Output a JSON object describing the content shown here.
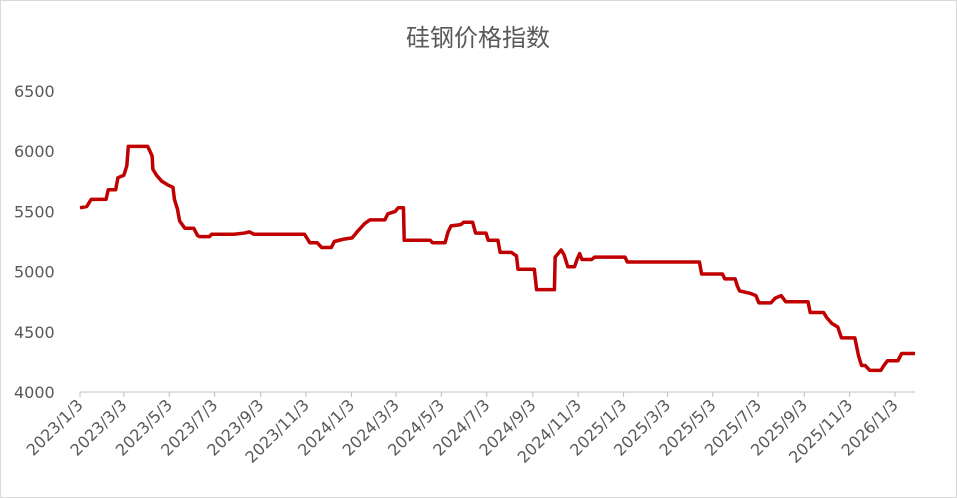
{
  "chart_data": {
    "type": "line",
    "title": "硅钢价格指数",
    "x": [
      "2023/1/3",
      "2023/1/12",
      "2023/1/18",
      "2023/2/7",
      "2023/2/10",
      "2023/2/20",
      "2023/2/23",
      "2023/3/3",
      "2023/3/7",
      "2023/3/9",
      "2023/4/4",
      "2023/4/10",
      "2023/4/11",
      "2023/4/16",
      "2023/4/23",
      "2023/5/1",
      "2023/5/8",
      "2023/5/10",
      "2023/5/14",
      "2023/5/17",
      "2023/5/24",
      "2023/6/5",
      "2023/6/10",
      "2023/6/13",
      "2023/6/26",
      "2023/6/29",
      "2023/7/29",
      "2023/8/12",
      "2023/8/19",
      "2023/8/25",
      "2023/11/1",
      "2023/11/8",
      "2023/11/18",
      "2023/11/24",
      "2023/12/7",
      "2023/12/11",
      "2023/12/24",
      "2024/1/4",
      "2024/1/12",
      "2024/1/21",
      "2024/1/28",
      "2024/2/17",
      "2024/2/21",
      "2024/3/2",
      "2024/3/6",
      "2024/3/13",
      "2024/3/14",
      "2024/4/18",
      "2024/4/21",
      "2024/5/8",
      "2024/5/12",
      "2024/5/16",
      "2024/5/29",
      "2024/6/2",
      "2024/6/14",
      "2024/6/18",
      "2024/7/2",
      "2024/7/5",
      "2024/7/18",
      "2024/7/21",
      "2024/8/5",
      "2024/8/12",
      "2024/8/14",
      "2024/9/5",
      "2024/9/8",
      "2024/10/2",
      "2024/10/3",
      "2024/10/11",
      "2024/10/15",
      "2024/10/20",
      "2024/10/29",
      "2024/11/2",
      "2024/11/5",
      "2024/11/8",
      "2024/11/21",
      "2024/11/25",
      "2025/1/5",
      "2025/1/8",
      "2025/4/15",
      "2025/4/18",
      "2025/5/16",
      "2025/5/19",
      "2025/6/2",
      "2025/6/5",
      "2025/6/8",
      "2025/6/22",
      "2025/6/30",
      "2025/7/4",
      "2025/7/20",
      "2025/7/26",
      "2025/8/3",
      "2025/8/9",
      "2025/9/8",
      "2025/9/11",
      "2025/9/29",
      "2025/10/3",
      "2025/10/10",
      "2025/10/18",
      "2025/10/23",
      "2025/11/10",
      "2025/11/15",
      "2025/11/19",
      "2025/11/24",
      "2025/11/30",
      "2025/12/15",
      "2025/12/19",
      "2025/12/24",
      "2026/1/7",
      "2026/1/12",
      "2026/1/30"
    ],
    "values": [
      5530,
      5540,
      5600,
      5600,
      5680,
      5680,
      5780,
      5800,
      5880,
      6040,
      6040,
      5960,
      5850,
      5800,
      5750,
      5720,
      5700,
      5600,
      5520,
      5420,
      5360,
      5360,
      5300,
      5290,
      5290,
      5310,
      5310,
      5320,
      5330,
      5310,
      5310,
      5240,
      5240,
      5200,
      5200,
      5250,
      5270,
      5280,
      5340,
      5400,
      5430,
      5430,
      5480,
      5500,
      5530,
      5530,
      5260,
      5260,
      5240,
      5240,
      5330,
      5380,
      5390,
      5410,
      5410,
      5320,
      5320,
      5260,
      5260,
      5160,
      5160,
      5130,
      5020,
      5020,
      4850,
      4850,
      5120,
      5180,
      5140,
      5040,
      5040,
      5110,
      5150,
      5100,
      5100,
      5120,
      5120,
      5080,
      5080,
      4980,
      4980,
      4940,
      4940,
      4880,
      4840,
      4820,
      4800,
      4740,
      4740,
      4780,
      4800,
      4750,
      4750,
      4660,
      4660,
      4620,
      4570,
      4540,
      4450,
      4450,
      4300,
      4220,
      4220,
      4180,
      4180,
      4220,
      4260,
      4260,
      4320,
      4320
    ],
    "color": "#c00000",
    "xlim": [
      "2023/1/3",
      "2026/1/30"
    ],
    "xticks": [
      "2023/1/3",
      "2023/3/3",
      "2023/5/3",
      "2023/7/3",
      "2023/9/3",
      "2023/11/3",
      "2024/1/3",
      "2024/3/3",
      "2024/5/3",
      "2024/7/3",
      "2024/9/3",
      "2024/11/3",
      "2025/1/3",
      "2025/3/3",
      "2025/5/3",
      "2025/7/3",
      "2025/9/3",
      "2025/11/3",
      "2026/1/3"
    ],
    "ylim": [
      4000,
      6500
    ],
    "yticks": [
      4000,
      4500,
      5000,
      5500,
      6000,
      6500
    ]
  }
}
